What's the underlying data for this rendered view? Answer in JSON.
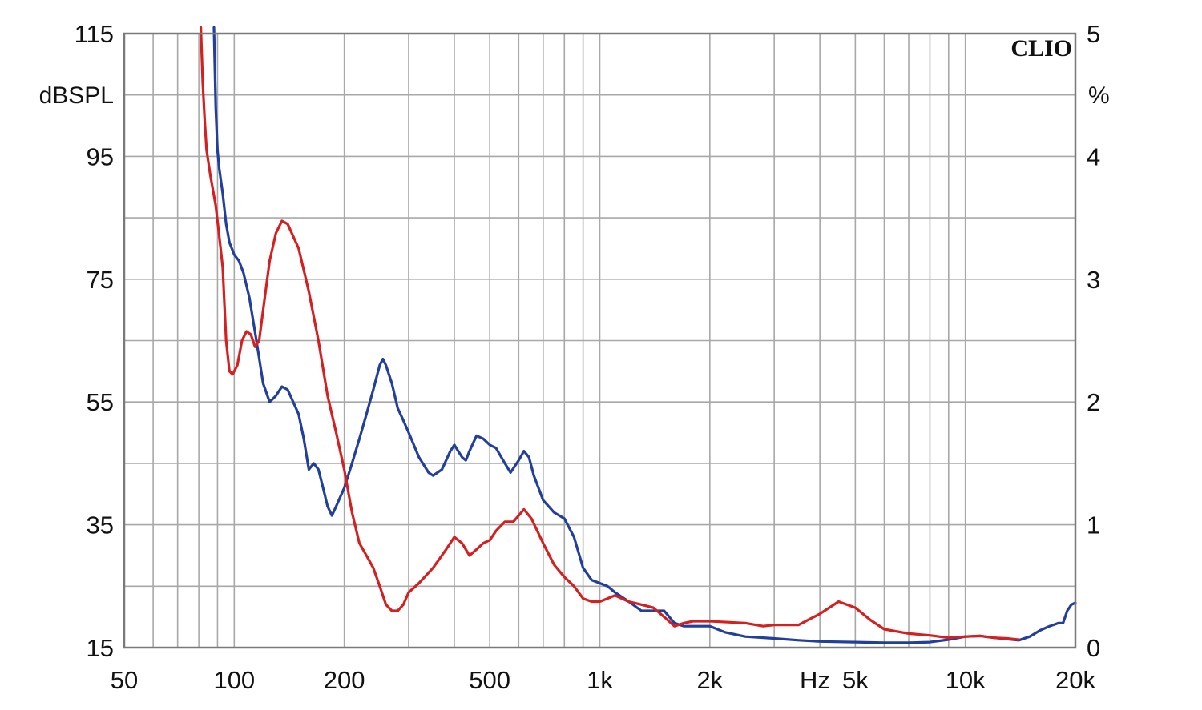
{
  "chart_data": {
    "type": "line",
    "logo": "CLIO",
    "x_unit": "Hz",
    "y_left_unit": "dBSPL",
    "y_right_unit": "%",
    "x_scale": "log",
    "xlim": [
      50,
      20000
    ],
    "ylim_left": [
      15,
      115
    ],
    "ylim_right": [
      0,
      5
    ],
    "grid": true,
    "x_ticks": [
      {
        "value": 50,
        "label": "50"
      },
      {
        "value": 100,
        "label": "100"
      },
      {
        "value": 200,
        "label": "200"
      },
      {
        "value": 500,
        "label": "500"
      },
      {
        "value": 1000,
        "label": "1k"
      },
      {
        "value": 2000,
        "label": "2k"
      },
      {
        "value": 5000,
        "label": "5k"
      },
      {
        "value": 10000,
        "label": "10k"
      },
      {
        "value": 20000,
        "label": "20k"
      }
    ],
    "y_left_ticks": [
      "15",
      "35",
      "55",
      "75",
      "95",
      "115"
    ],
    "y_right_ticks": [
      "0",
      "1",
      "2",
      "3",
      "4",
      "5"
    ],
    "series": [
      {
        "color": "#213f9b",
        "points": [
          [
            88,
            116
          ],
          [
            89,
            103
          ],
          [
            90,
            96
          ],
          [
            91,
            93
          ],
          [
            93,
            89
          ],
          [
            95,
            84
          ],
          [
            97,
            81
          ],
          [
            100,
            79
          ],
          [
            103,
            78
          ],
          [
            106,
            76
          ],
          [
            110,
            72
          ],
          [
            115,
            65
          ],
          [
            120,
            58
          ],
          [
            125,
            55
          ],
          [
            130,
            56
          ],
          [
            135,
            57.5
          ],
          [
            140,
            57
          ],
          [
            150,
            53
          ],
          [
            155,
            49
          ],
          [
            160,
            44
          ],
          [
            165,
            45
          ],
          [
            170,
            44
          ],
          [
            175,
            41
          ],
          [
            180,
            38
          ],
          [
            185,
            36.5
          ],
          [
            190,
            38
          ],
          [
            200,
            41
          ],
          [
            210,
            45
          ],
          [
            220,
            49
          ],
          [
            230,
            53
          ],
          [
            240,
            57
          ],
          [
            250,
            61
          ],
          [
            255,
            62
          ],
          [
            260,
            61
          ],
          [
            270,
            58
          ],
          [
            280,
            54
          ],
          [
            290,
            52
          ],
          [
            300,
            50
          ],
          [
            320,
            46
          ],
          [
            340,
            43.5
          ],
          [
            350,
            43
          ],
          [
            370,
            44
          ],
          [
            390,
            47
          ],
          [
            400,
            48
          ],
          [
            420,
            46
          ],
          [
            430,
            45.5
          ],
          [
            440,
            47
          ],
          [
            460,
            49.5
          ],
          [
            480,
            49
          ],
          [
            500,
            48
          ],
          [
            520,
            47.5
          ],
          [
            550,
            45
          ],
          [
            570,
            43.5
          ],
          [
            600,
            45.5
          ],
          [
            620,
            47
          ],
          [
            640,
            46
          ],
          [
            660,
            43
          ],
          [
            700,
            39
          ],
          [
            750,
            37
          ],
          [
            800,
            36
          ],
          [
            850,
            33
          ],
          [
            900,
            28
          ],
          [
            950,
            26
          ],
          [
            1000,
            25.5
          ],
          [
            1050,
            25
          ],
          [
            1100,
            24
          ],
          [
            1200,
            22.5
          ],
          [
            1300,
            21
          ],
          [
            1400,
            21
          ],
          [
            1500,
            21
          ],
          [
            1600,
            19
          ],
          [
            1700,
            18.5
          ],
          [
            2000,
            18.5
          ],
          [
            2200,
            17.5
          ],
          [
            2500,
            16.8
          ],
          [
            3000,
            16.5
          ],
          [
            3500,
            16.2
          ],
          [
            4000,
            16
          ],
          [
            5000,
            15.9
          ],
          [
            6000,
            15.8
          ],
          [
            7000,
            15.8
          ],
          [
            8000,
            15.9
          ],
          [
            9000,
            16.3
          ],
          [
            10000,
            16.8
          ],
          [
            11000,
            16.9
          ],
          [
            12000,
            16.6
          ],
          [
            14000,
            16.2
          ],
          [
            15000,
            16.8
          ],
          [
            16000,
            17.8
          ],
          [
            17000,
            18.5
          ],
          [
            18000,
            19
          ],
          [
            18500,
            19
          ],
          [
            19000,
            21
          ],
          [
            19500,
            22
          ],
          [
            20000,
            22.3
          ]
        ]
      },
      {
        "color": "#d42020",
        "points": [
          [
            81,
            116
          ],
          [
            82,
            107
          ],
          [
            83,
            101
          ],
          [
            84,
            96
          ],
          [
            86,
            92
          ],
          [
            89,
            87
          ],
          [
            91,
            82
          ],
          [
            93,
            77
          ],
          [
            95,
            65
          ],
          [
            97,
            60
          ],
          [
            99,
            59.5
          ],
          [
            102,
            61
          ],
          [
            105,
            65
          ],
          [
            108,
            66.5
          ],
          [
            111,
            66
          ],
          [
            114,
            64
          ],
          [
            117,
            65
          ],
          [
            120,
            70
          ],
          [
            125,
            78
          ],
          [
            130,
            82.5
          ],
          [
            135,
            84.5
          ],
          [
            140,
            84
          ],
          [
            150,
            80
          ],
          [
            160,
            73
          ],
          [
            170,
            65
          ],
          [
            180,
            56
          ],
          [
            190,
            50
          ],
          [
            200,
            44
          ],
          [
            210,
            37
          ],
          [
            220,
            32
          ],
          [
            230,
            30
          ],
          [
            240,
            28
          ],
          [
            250,
            25
          ],
          [
            260,
            22
          ],
          [
            270,
            21
          ],
          [
            280,
            21
          ],
          [
            290,
            22
          ],
          [
            300,
            24
          ],
          [
            320,
            25.5
          ],
          [
            350,
            28
          ],
          [
            380,
            31
          ],
          [
            400,
            33
          ],
          [
            420,
            32
          ],
          [
            440,
            30
          ],
          [
            460,
            31
          ],
          [
            480,
            32
          ],
          [
            500,
            32.5
          ],
          [
            520,
            34
          ],
          [
            550,
            35.5
          ],
          [
            580,
            35.5
          ],
          [
            600,
            36.5
          ],
          [
            620,
            37.5
          ],
          [
            650,
            36
          ],
          [
            700,
            32
          ],
          [
            750,
            28.5
          ],
          [
            800,
            26.5
          ],
          [
            850,
            25
          ],
          [
            900,
            23
          ],
          [
            950,
            22.5
          ],
          [
            1000,
            22.5
          ],
          [
            1050,
            23
          ],
          [
            1100,
            23.5
          ],
          [
            1200,
            22.5
          ],
          [
            1300,
            22
          ],
          [
            1400,
            21.5
          ],
          [
            1500,
            20
          ],
          [
            1600,
            18.5
          ],
          [
            1700,
            19
          ],
          [
            1800,
            19.3
          ],
          [
            2000,
            19.3
          ],
          [
            2500,
            19
          ],
          [
            2800,
            18.5
          ],
          [
            3000,
            18.7
          ],
          [
            3500,
            18.7
          ],
          [
            4000,
            20.5
          ],
          [
            4500,
            22.5
          ],
          [
            5000,
            21.5
          ],
          [
            5500,
            19.5
          ],
          [
            6000,
            18
          ],
          [
            7000,
            17.3
          ],
          [
            8000,
            17
          ],
          [
            9000,
            16.6
          ],
          [
            10000,
            16.8
          ],
          [
            11000,
            16.9
          ],
          [
            12000,
            16.6
          ],
          [
            13000,
            16.5
          ],
          [
            14000,
            16.3
          ]
        ]
      }
    ]
  }
}
